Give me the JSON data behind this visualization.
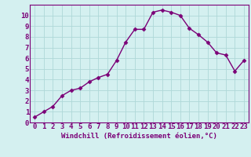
{
  "x": [
    0,
    1,
    2,
    3,
    4,
    5,
    6,
    7,
    8,
    9,
    10,
    11,
    12,
    13,
    14,
    15,
    16,
    17,
    18,
    19,
    20,
    21,
    22,
    23
  ],
  "y": [
    0.5,
    1.0,
    1.5,
    2.5,
    3.0,
    3.2,
    3.8,
    4.2,
    4.5,
    5.8,
    7.5,
    8.7,
    8.7,
    10.3,
    10.5,
    10.3,
    10.0,
    8.8,
    8.2,
    7.5,
    6.5,
    6.3,
    4.8,
    5.8
  ],
  "line_color": "#7b0077",
  "marker": "D",
  "marker_size": 2.5,
  "bg_color": "#d4f0f0",
  "grid_color": "#aed8d8",
  "xlabel": "Windchill (Refroidissement éolien,°C)",
  "xlim_min": -0.5,
  "xlim_max": 23.5,
  "ylim_min": 0,
  "ylim_max": 11,
  "xticks": [
    0,
    1,
    2,
    3,
    4,
    5,
    6,
    7,
    8,
    9,
    10,
    11,
    12,
    13,
    14,
    15,
    16,
    17,
    18,
    19,
    20,
    21,
    22,
    23
  ],
  "yticks": [
    0,
    1,
    2,
    3,
    4,
    5,
    6,
    7,
    8,
    9,
    10
  ],
  "tick_color": "#7b0077",
  "xlabel_color": "#7b0077",
  "xlabel_fontsize": 6.5,
  "tick_fontsize": 6.5,
  "line_width": 1.0,
  "spine_color": "#7b0077"
}
